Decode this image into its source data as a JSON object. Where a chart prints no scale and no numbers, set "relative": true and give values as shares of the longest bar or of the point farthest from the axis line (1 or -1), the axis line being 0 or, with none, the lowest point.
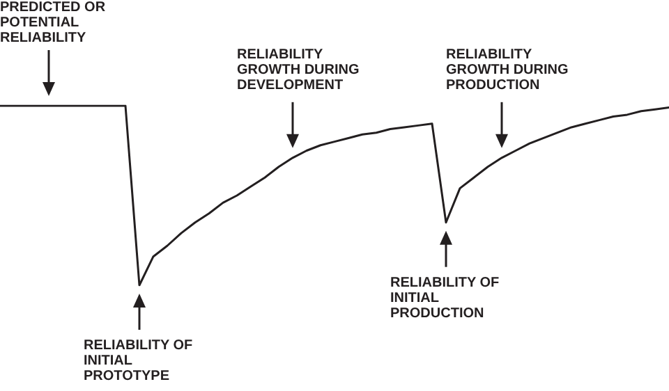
{
  "chart_data": {
    "type": "line",
    "relative": true,
    "tick_labels": false,
    "categories": [
      null,
      null,
      null,
      null,
      null,
      null,
      null,
      null,
      null,
      null,
      null,
      null,
      null,
      null,
      null,
      null,
      null,
      null,
      null,
      null,
      null,
      null,
      null,
      null,
      null,
      null,
      null,
      null,
      null,
      null,
      null,
      null,
      null,
      null,
      null,
      null,
      null,
      null,
      null,
      null,
      null,
      null,
      null,
      null,
      null,
      null,
      null,
      null,
      null
    ],
    "series": [
      {
        "color": "#231f20",
        "values": [
          1.0,
          1.0,
          1.0,
          1.0,
          1.0,
          1.0,
          1.0,
          1.0,
          1.0,
          1.0,
          0,
          0.16,
          0.22,
          0.29,
          0.35,
          0.4,
          0.46,
          0.5,
          0.55,
          0.6,
          0.66,
          0.71,
          0.75,
          0.78,
          0.8,
          0.82,
          0.84,
          0.85,
          0.87,
          0.88,
          0.89,
          0.9,
          0.35,
          0.54,
          0.6,
          0.66,
          0.71,
          0.75,
          0.79,
          0.82,
          0.85,
          0.88,
          0.9,
          0.92,
          0.94,
          0.95,
          0.97,
          0.98,
          0.99
        ]
      }
    ],
    "annotations": [
      "PREDICTED OR POTENTIAL RELIABILITY",
      "RELIABILITY GROWTH DURING DEVELOPMENT",
      "RELIABILITY GROWTH DURING PRODUCTION",
      "RELIABILITY OF INITIAL PROTOTYPE",
      "RELIABILITY OF INITIAL PRODUCTION"
    ]
  }
}
